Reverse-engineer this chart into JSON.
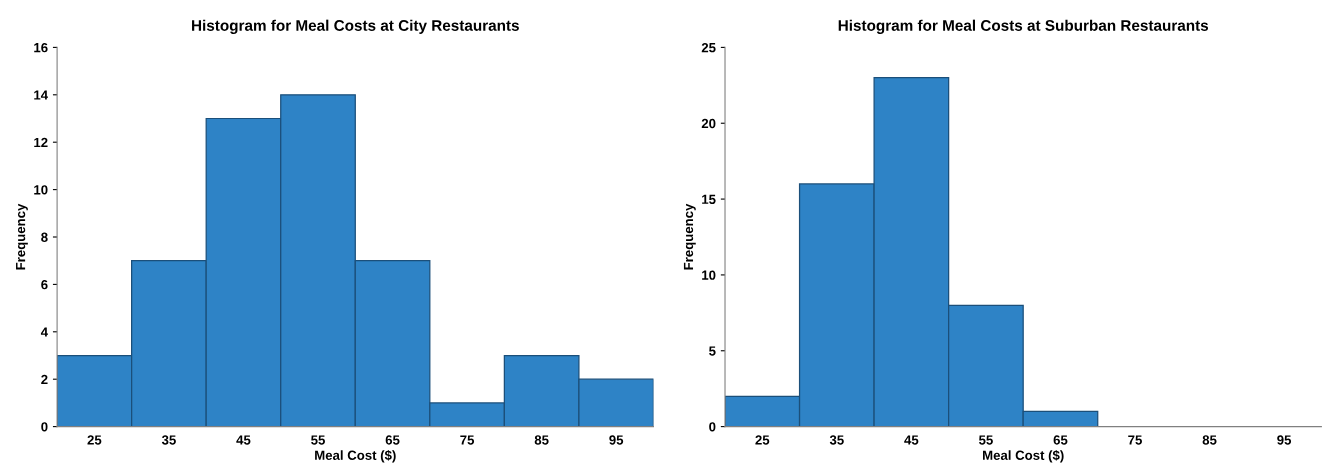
{
  "chart_data": [
    {
      "type": "histogram",
      "title": "Histogram for Meal Costs at City Restaurants",
      "xlabel": "Meal Cost ($)",
      "ylabel": "Frequency",
      "bins": [
        20,
        30,
        40,
        50,
        60,
        70,
        80,
        90,
        100
      ],
      "values": [
        3,
        7,
        13,
        14,
        7,
        1,
        3,
        2
      ],
      "color": "#2e83c6",
      "xlim": [
        20,
        100
      ],
      "xticks": [
        25,
        35,
        45,
        55,
        65,
        75,
        85,
        95
      ],
      "ylim": [
        0,
        16
      ],
      "yticks": [
        0,
        2,
        4,
        6,
        8,
        10,
        12,
        14,
        16
      ],
      "grid": false
    },
    {
      "type": "histogram",
      "title": "Histogram for Meal Costs at Suburban Restaurants",
      "xlabel": "Meal Cost ($)",
      "ylabel": "Frequency",
      "bins": [
        20,
        30,
        40,
        50,
        60,
        70,
        80,
        90,
        100
      ],
      "values": [
        2,
        16,
        23,
        8,
        1,
        0,
        0,
        0
      ],
      "color": "#2e83c6",
      "xlim": [
        20,
        100
      ],
      "xticks": [
        25,
        35,
        45,
        55,
        65,
        75,
        85,
        95
      ],
      "ylim": [
        0,
        25
      ],
      "yticks": [
        0,
        5,
        10,
        15,
        20,
        25
      ],
      "grid": false
    }
  ]
}
